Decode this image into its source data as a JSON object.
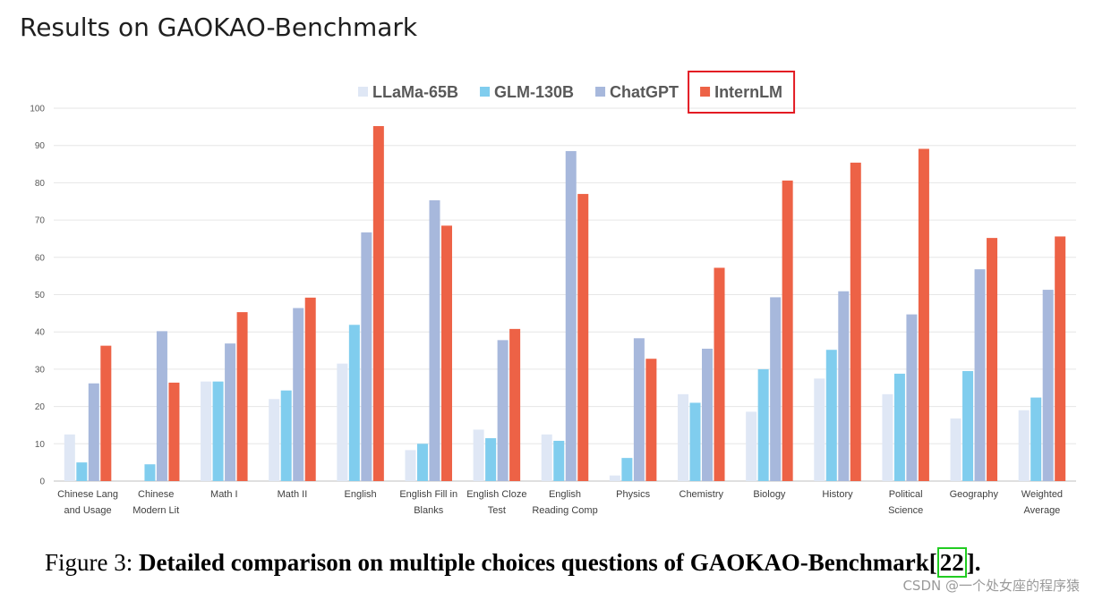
{
  "header": {
    "title": "Results on GAOKAO-Benchmark"
  },
  "chart_data": {
    "type": "bar",
    "title": "",
    "xlabel": "",
    "ylabel": "",
    "ylim": [
      0,
      100
    ],
    "yticks": [
      0,
      10,
      20,
      30,
      40,
      50,
      60,
      70,
      80,
      90,
      100
    ],
    "legend_position": "top-center",
    "highlighted_series": "InternLM",
    "categories": [
      [
        "Chinese Lang",
        "and Usage"
      ],
      [
        "Chinese",
        "Modern Lit"
      ],
      [
        "Math I"
      ],
      [
        "Math II"
      ],
      [
        "English"
      ],
      [
        "English Fill in",
        "Blanks"
      ],
      [
        "English Cloze",
        "Test"
      ],
      [
        "English",
        "Reading Comp"
      ],
      [
        "Physics"
      ],
      [
        "Chemistry"
      ],
      [
        "Biology"
      ],
      [
        "History"
      ],
      [
        "Political",
        "Science"
      ],
      [
        "Geography"
      ],
      [
        "Weighted",
        "Average"
      ]
    ],
    "series": [
      {
        "name": "LLaMa-65B",
        "color": "#dfe7f5",
        "values": [
          12.5,
          0,
          26.7,
          22,
          31.5,
          8.3,
          13.8,
          12.5,
          1.5,
          23.3,
          18.6,
          27.5,
          23.3,
          16.8,
          19
        ]
      },
      {
        "name": "GLM-130B",
        "color": "#80cdee",
        "values": [
          5,
          4.5,
          26.7,
          24.3,
          41.9,
          10,
          11.5,
          10.8,
          6.2,
          21,
          30,
          35.2,
          28.8,
          29.5,
          22.4
        ]
      },
      {
        "name": "ChatGPT",
        "color": "#a7b8dc",
        "values": [
          26.2,
          40.2,
          36.9,
          46.4,
          66.7,
          75.3,
          37.8,
          88.5,
          38.3,
          35.5,
          49.3,
          50.9,
          44.7,
          56.8,
          51.3
        ]
      },
      {
        "name": "InternLM",
        "color": "#ed6246",
        "values": [
          36.3,
          26.4,
          45.3,
          49.2,
          95.2,
          68.5,
          40.8,
          77,
          32.8,
          57.2,
          80.6,
          85.4,
          89.1,
          65.2,
          65.6
        ]
      }
    ]
  },
  "caption": {
    "prefix": "Figure 3: ",
    "text": "Detailed comparison on multiple choices questions of GAOKAO-Benchmark",
    "cite_open": "[",
    "cite_number": "22",
    "cite_close": "].",
    "cite_box_color": "#22cc22"
  },
  "watermark": "CSDN @一个处女座的程序猿"
}
